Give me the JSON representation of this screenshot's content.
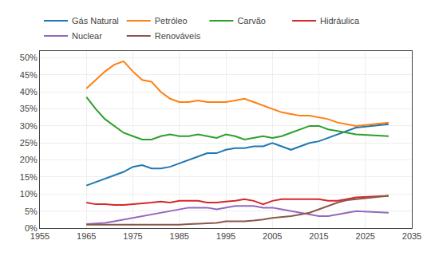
{
  "chart_data": {
    "type": "line",
    "x": [
      1965,
      1967,
      1969,
      1971,
      1973,
      1975,
      1977,
      1979,
      1981,
      1983,
      1985,
      1987,
      1989,
      1991,
      1993,
      1995,
      1997,
      1999,
      2001,
      2003,
      2005,
      2007,
      2009,
      2011,
      2013,
      2015,
      2017,
      2019,
      2021,
      2023,
      2030
    ],
    "series": [
      {
        "name": "Gás Natural",
        "values": [
          12.5,
          13.5,
          14.5,
          15.5,
          16.5,
          18,
          18.5,
          17.5,
          17.5,
          18,
          19,
          20,
          21,
          22,
          22,
          23,
          23.5,
          23.5,
          24,
          24,
          25,
          24,
          23,
          24,
          25,
          25.5,
          26.5,
          27.5,
          28.5,
          29.5,
          30.5
        ]
      },
      {
        "name": "Petróleo",
        "values": [
          41,
          43.5,
          46,
          48,
          49,
          46,
          43.5,
          43,
          40,
          38,
          37,
          37,
          37.5,
          37,
          37,
          37,
          37.5,
          38,
          37,
          36,
          35,
          34,
          33.5,
          33,
          33,
          32.5,
          32,
          31,
          30.5,
          30,
          31
        ]
      },
      {
        "name": "Carvão",
        "values": [
          38.5,
          35,
          32,
          30,
          28,
          27,
          26,
          26,
          27,
          27.5,
          27,
          27,
          27.5,
          27,
          26.5,
          27.5,
          27,
          26,
          26.5,
          27,
          26.5,
          27,
          28,
          29,
          30,
          30,
          29,
          28.5,
          28,
          27.5,
          27
        ]
      },
      {
        "name": "Hidráulica",
        "values": [
          7.5,
          7,
          7,
          6.8,
          6.8,
          7,
          7.2,
          7.5,
          7.8,
          7.5,
          8,
          8,
          8,
          7.5,
          7.5,
          7.8,
          8,
          8.5,
          8,
          7,
          8,
          8.5,
          8.5,
          8.5,
          8.5,
          8.5,
          8,
          8,
          8.5,
          9,
          9.5
        ]
      },
      {
        "name": "Nuclear",
        "values": [
          1.2,
          1.3,
          1.5,
          2,
          2.5,
          3,
          3.5,
          4,
          4.5,
          5,
          5.5,
          6,
          6,
          6,
          5.5,
          6,
          6.5,
          6.5,
          6.5,
          6,
          6,
          5.5,
          5,
          4.5,
          4,
          3.5,
          3.5,
          4,
          4.5,
          5,
          4.5
        ]
      },
      {
        "name": "Renováveis",
        "values": [
          1.0,
          1.0,
          1.0,
          1.0,
          1.0,
          1.0,
          1.0,
          1.0,
          1.0,
          1.0,
          1.0,
          1.2,
          1.3,
          1.5,
          1.5,
          2,
          2,
          2,
          2.2,
          2.5,
          3,
          3.2,
          3.5,
          4,
          4.5,
          5.5,
          6.5,
          7.5,
          8.2,
          8.5,
          9.5
        ]
      }
    ],
    "xlim": [
      1955,
      2035
    ],
    "xticks": [
      1955,
      1965,
      1975,
      1985,
      1995,
      2005,
      2015,
      2025,
      2035
    ],
    "ylim": [
      0,
      52
    ],
    "yticks": [
      {
        "value": 0,
        "label": "0%"
      },
      {
        "value": 5,
        "label": "5%"
      },
      {
        "value": 10,
        "label": "10%"
      },
      {
        "value": 15,
        "label": "15%"
      },
      {
        "value": 20,
        "label": "20%"
      },
      {
        "value": 25,
        "label": "25%"
      },
      {
        "value": 30,
        "label": "30%"
      },
      {
        "value": 35,
        "label": "35%"
      },
      {
        "value": 40,
        "label": "40%"
      },
      {
        "value": 45,
        "label": "45%"
      },
      {
        "value": 50,
        "label": "50%"
      }
    ],
    "grid": true,
    "legend": "top"
  }
}
